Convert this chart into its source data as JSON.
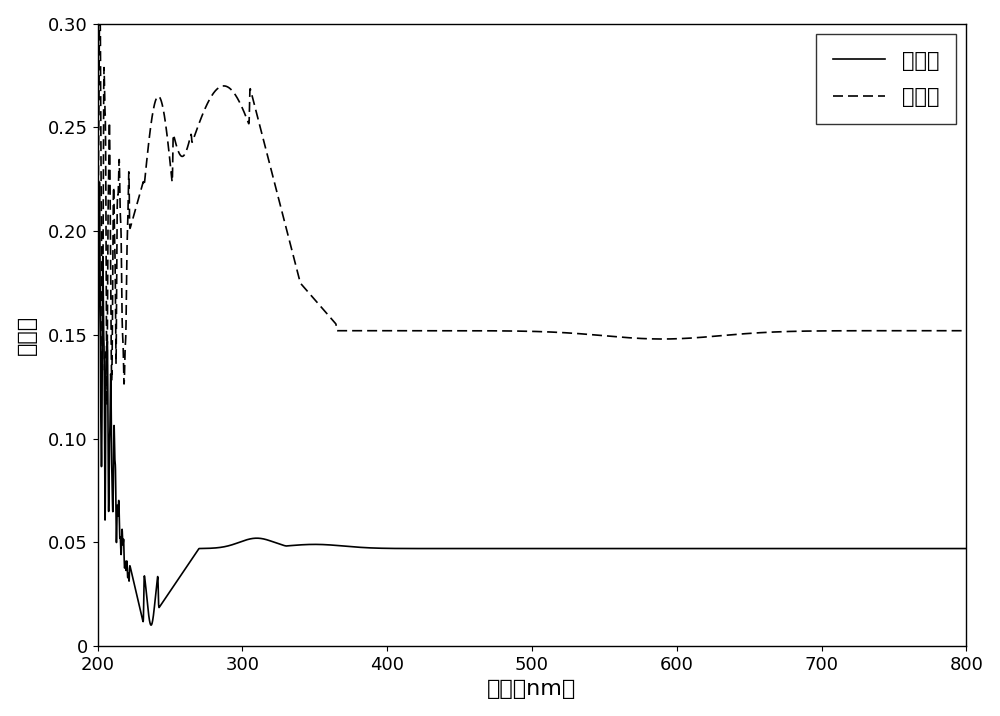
{
  "xlabel": "波长（nm）",
  "ylabel": "吸光度",
  "xlim": [
    200,
    800
  ],
  "ylim": [
    0,
    0.3
  ],
  "yticks": [
    0,
    0.05,
    0.1,
    0.15,
    0.2,
    0.25,
    0.3
  ],
  "ytick_labels": [
    "0",
    "0.05",
    "0.10",
    "0.15",
    "0.20",
    "0.25",
    "0.30"
  ],
  "xticks": [
    200,
    300,
    400,
    500,
    600,
    700,
    800
  ],
  "legend_before": "曝光前",
  "legend_after": "曝光后",
  "line_color": "#000000",
  "background_color": "#ffffff",
  "linewidth": 1.2
}
